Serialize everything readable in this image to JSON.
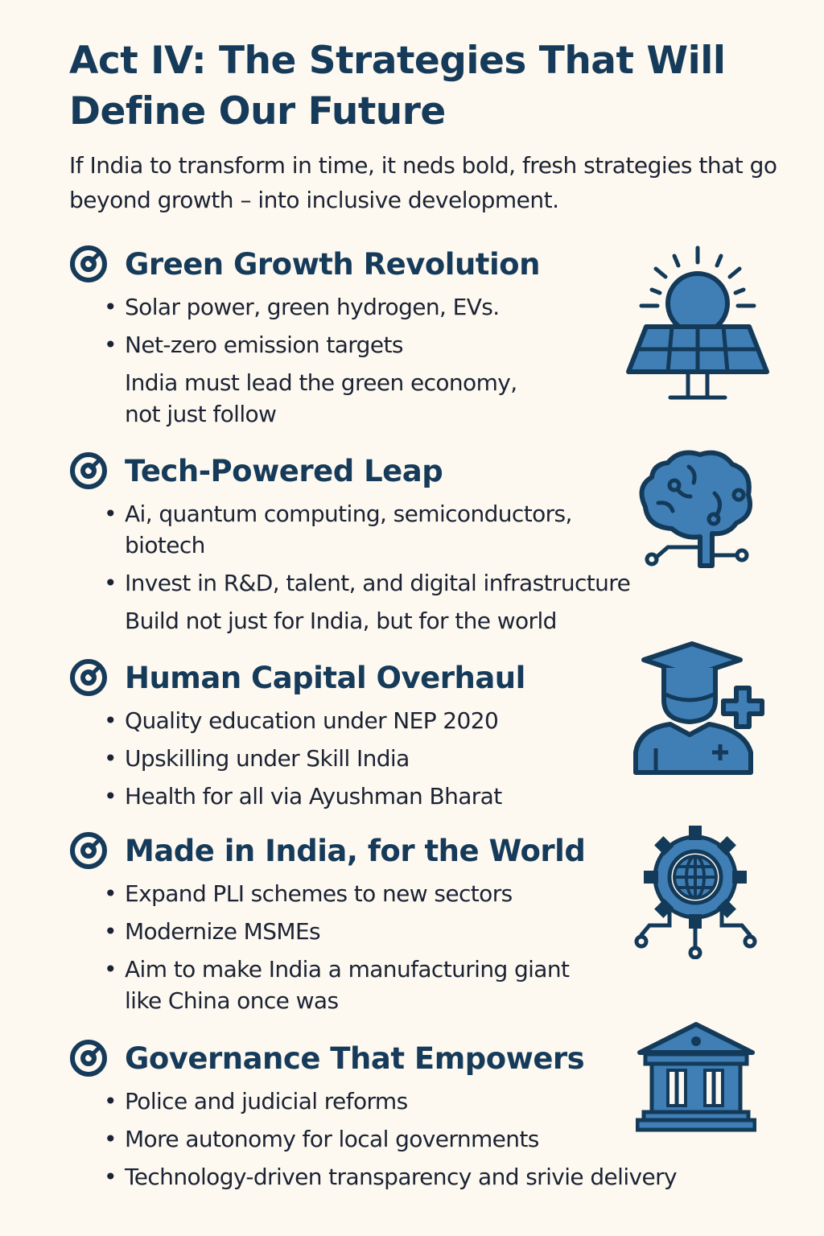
{
  "title": "Act IV: The Strategies That Will Define Our Future",
  "subtitle": "If India to transform in time, it neds bold, fresh strategies that go beyond growth – into inclusive development.",
  "colors": {
    "background": "#fdf9f0",
    "heading": "#163b5a",
    "icon_fill": "#3f7fb5",
    "icon_stroke": "#143a5a"
  },
  "sections": [
    {
      "title": "Green Growth Revolution",
      "icon": "solar-panel-icon",
      "lines": [
        "Solar power, green hydrogen, EVs.",
        "Net-zero emission targets",
        "India must lead the green economy,",
        "not just follow"
      ]
    },
    {
      "title": "Tech-Powered Leap",
      "icon": "circuit-brain-icon",
      "lines": [
        "Ai, quantum computing, semiconductors,",
        "biotech",
        "Invest in R&D, talent, and digital infrastructure",
        "Build not just for India, but for the world"
      ]
    },
    {
      "title": "Human Capital Overhaul",
      "icon": "graduate-health-icon",
      "lines": [
        "Quality education under NEP 2020",
        "Upskilling under Skill India",
        "Health for all via Ayushman Bharat"
      ]
    },
    {
      "title": "Made in India, for the World",
      "icon": "globe-gear-icon",
      "lines": [
        "Expand PLI schemes to new sectors",
        "Modernize MSMEs",
        "Aim to make India a manufacturing giant",
        "like China once was"
      ]
    },
    {
      "title": "Governance That Empowers",
      "icon": "government-building-icon",
      "lines": [
        "Police and judicial reforms",
        "More autonomy for local governments",
        "Technology-driven transparency and srivie delivery"
      ]
    }
  ]
}
